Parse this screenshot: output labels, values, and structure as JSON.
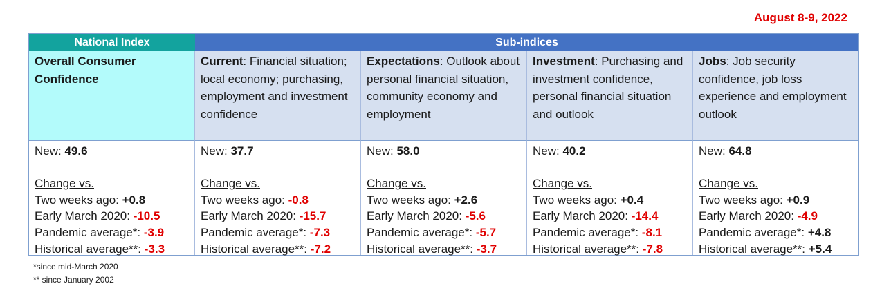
{
  "date": "August 8-9, 2022",
  "headers": {
    "national": "National Index",
    "sub": "Sub-indices"
  },
  "columns": [
    {
      "title": "Overall Consumer Confidence",
      "description": "",
      "new_label": "New: ",
      "new_value": "49.6",
      "change_label": "Change vs.",
      "rows": [
        {
          "label": "Two weeks ago: ",
          "value": "+0.8",
          "color": "black"
        },
        {
          "label": "Early March 2020: ",
          "value": "-10.5",
          "color": "red"
        },
        {
          "label": "Pandemic average*: ",
          "value": "-3.9",
          "color": "red"
        },
        {
          "label": "Historical average**: ",
          "value": "-3.3",
          "color": "red"
        }
      ]
    },
    {
      "title": "Current",
      "description": ":  Financial situation; local economy; purchasing, employment and investment confidence",
      "new_label": "New: ",
      "new_value": "37.7",
      "change_label": "Change vs.",
      "rows": [
        {
          "label": "Two weeks ago: ",
          "value": "-0.8",
          "color": "red"
        },
        {
          "label": "Early March 2020: ",
          "value": "-15.7",
          "color": "red"
        },
        {
          "label": "Pandemic average*:  ",
          "value": "-7.3",
          "color": "red"
        },
        {
          "label": "Historical average**: ",
          "value": "-7.2",
          "color": "red"
        }
      ]
    },
    {
      "title": "Expectations",
      "description": ":  Outlook about personal financial situation, community economy and employment",
      "new_label": "New: ",
      "new_value": "58.0",
      "change_label": "Change vs.",
      "rows": [
        {
          "label": "Two weeks ago: ",
          "value": "+2.6",
          "color": "black"
        },
        {
          "label": "Early March 2020:  ",
          "value": "-5.6",
          "color": "red"
        },
        {
          "label": "Pandemic average*: ",
          "value": "-5.7",
          "color": "red"
        },
        {
          "label": "Historical average**: ",
          "value": "-3.7",
          "color": "red"
        }
      ]
    },
    {
      "title": "Investment",
      "description": ": Purchasing and investment confidence, personal financial situation and outlook",
      "new_label": "New: ",
      "new_value": "40.2",
      "change_label": "Change vs.",
      "rows": [
        {
          "label": "Two weeks ago: ",
          "value": "+0.4",
          "color": "black"
        },
        {
          "label": "Early March 2020:  ",
          "value": "-14.4",
          "color": "red"
        },
        {
          "label": "Pandemic average*: ",
          "value": "-8.1",
          "color": "red"
        },
        {
          "label": "Historical average**: ",
          "value": "-7.8",
          "color": "red"
        }
      ]
    },
    {
      "title": "Jobs",
      "description": ": Job security confidence, job loss experience  and employment outlook",
      "new_label": "New: ",
      "new_value": "64.8",
      "change_label": "Change vs.",
      "rows": [
        {
          "label": "Two weeks ago: ",
          "value": "+0.9",
          "color": "black"
        },
        {
          "label": "Early March 2020:  ",
          "value": "-4.9",
          "color": "red"
        },
        {
          "label": "Pandemic average*: ",
          "value": "+4.8",
          "color": "black"
        },
        {
          "label": "Historical average**: ",
          "value": "+5.4",
          "color": "black"
        }
      ]
    }
  ],
  "footnotes": [
    "*since mid-March 2020",
    "** since January 2002"
  ],
  "colors": {
    "national_header": "#13a39e",
    "sub_header": "#4472c4",
    "national_cell": "#b3fbfb",
    "sub_cell": "#d6e0f0",
    "negative": "#e00000"
  }
}
